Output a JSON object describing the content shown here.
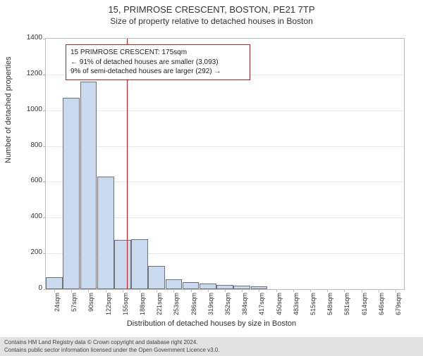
{
  "title": "15, PRIMROSE CRESCENT, BOSTON, PE21 7TP",
  "subtitle": "Size of property relative to detached houses in Boston",
  "ylabel": "Number of detached properties",
  "xlabel": "Distribution of detached houses by size in Boston",
  "chart": {
    "type": "histogram",
    "ylim": [
      0,
      1400
    ],
    "ytick_step": 200,
    "bar_fill": "#c9daf0",
    "bar_border": "#707070",
    "grid_color": "#e8e8e8",
    "axis_color": "#bcbcbc",
    "plot_bg": "#ffffff",
    "categories": [
      "24sqm",
      "57sqm",
      "90sqm",
      "122sqm",
      "155sqm",
      "188sqm",
      "221sqm",
      "253sqm",
      "286sqm",
      "319sqm",
      "352sqm",
      "384sqm",
      "417sqm",
      "450sqm",
      "483sqm",
      "515sqm",
      "548sqm",
      "581sqm",
      "614sqm",
      "646sqm",
      "679sqm"
    ],
    "values": [
      65,
      1070,
      1160,
      630,
      275,
      280,
      130,
      55,
      40,
      30,
      25,
      20,
      15,
      0,
      0,
      0,
      0,
      0,
      0,
      0,
      0
    ],
    "marker_bin_index": 4,
    "marker_color": "#d01818"
  },
  "annotation": {
    "line1": "15 PRIMROSE CRESCENT: 175sqm",
    "line2": "← 91% of detached houses are smaller (3,093)",
    "line3": "9% of semi-detached houses are larger (292) →",
    "border_color": "#b22222"
  },
  "footer": {
    "line1": "Contains HM Land Registry data © Crown copyright and database right 2024.",
    "line2": "Contains public sector information licensed under the Open Government Licence v3.0."
  }
}
